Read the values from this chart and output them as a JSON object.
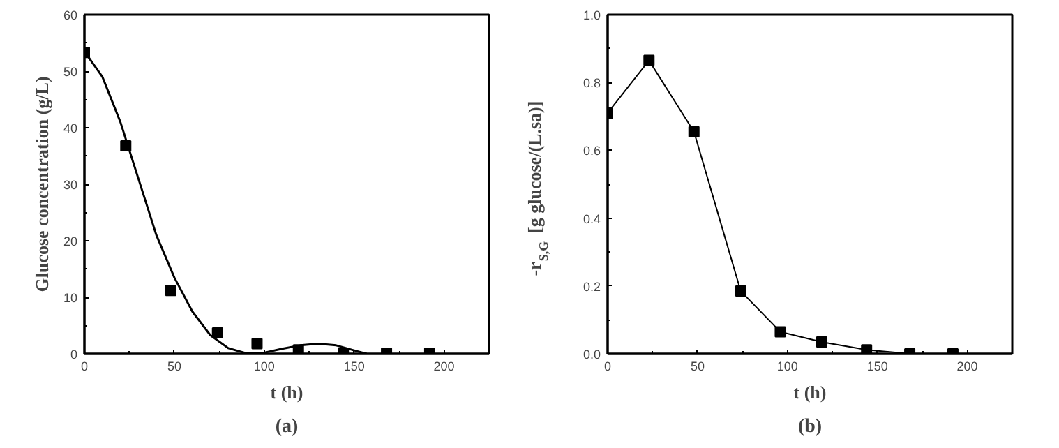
{
  "chart_data": [
    {
      "type": "scatter",
      "title": "(a)",
      "xlabel": "t (h)",
      "ylabel": "Glucose concentration (g/L)",
      "xlim": [
        0,
        225
      ],
      "ylim": [
        0,
        60
      ],
      "xticks": [
        0,
        50,
        100,
        150,
        200
      ],
      "yticks": [
        0,
        10,
        20,
        30,
        40,
        50,
        60
      ],
      "grid": false,
      "series": [
        {
          "type": "scatter",
          "marker": "square",
          "color": "#000000",
          "x": [
            0,
            23,
            48,
            74,
            96,
            119,
            144,
            168,
            192
          ],
          "values": [
            53.3,
            36.8,
            11.2,
            3.7,
            1.8,
            0.7,
            0.1,
            0.1,
            0.1
          ]
        },
        {
          "type": "line",
          "color": "#000000",
          "x": [
            0,
            10,
            20,
            30,
            40,
            50,
            60,
            70,
            80,
            90,
            100,
            110,
            120,
            130,
            140,
            150,
            157
          ],
          "values": [
            53.5,
            49,
            41,
            31,
            21,
            13.5,
            7.5,
            3.3,
            1,
            0.1,
            0.2,
            0.9,
            1.5,
            1.8,
            1.5,
            0.6,
            0
          ]
        }
      ]
    },
    {
      "type": "line",
      "title": "(b)",
      "xlabel": "t (h)",
      "ylabel": "-r$_{S,G}$ [g glucose/(L.sa)]",
      "xlim": [
        0,
        225
      ],
      "ylim": [
        0,
        1.0
      ],
      "xticks": [
        0,
        50,
        100,
        150,
        200
      ],
      "yticks": [
        {
          "value": 0,
          "label": "0.0"
        },
        0.2,
        0.4,
        0.6,
        0.8,
        {
          "value": 1,
          "label": "1.0"
        }
      ],
      "grid": false,
      "marker": "square",
      "line_style": "solid",
      "series": [
        {
          "color": "#000000",
          "x": [
            0,
            23,
            48,
            74,
            96,
            119,
            144,
            168,
            192
          ],
          "values": [
            0.71,
            0.865,
            0.655,
            0.185,
            0.065,
            0.035,
            0.012,
            0,
            0
          ]
        }
      ]
    }
  ]
}
